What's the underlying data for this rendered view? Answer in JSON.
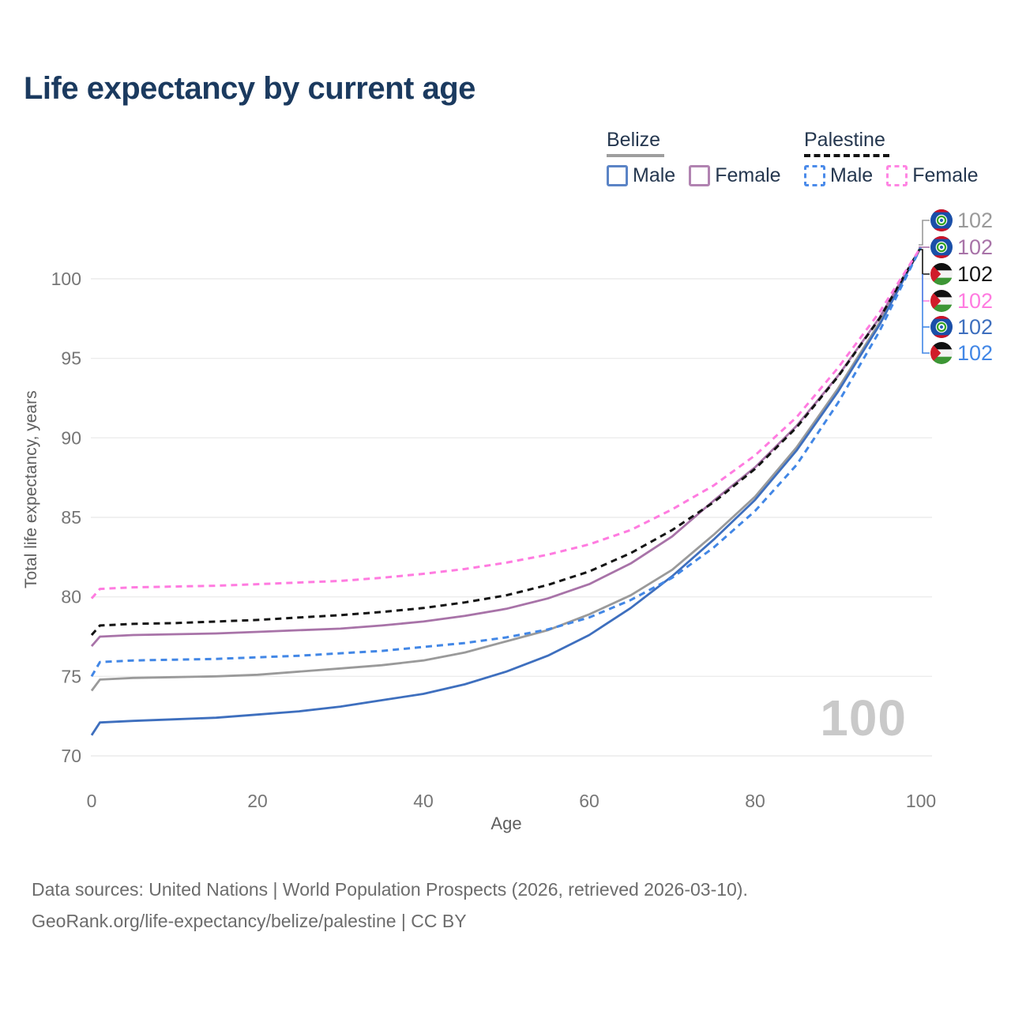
{
  "title": "Life expectancy by current age",
  "watermark": "100",
  "legend": {
    "belize": {
      "country": "Belize",
      "line_color": "#9e9e9e",
      "line_style": "solid",
      "items": [
        {
          "label": "Male",
          "color": "#5b84c6"
        },
        {
          "label": "Female",
          "color": "#b183b1"
        }
      ]
    },
    "palestine": {
      "country": "Palestine",
      "line_color": "#141414",
      "line_style": "dashed",
      "items": [
        {
          "label": "Male",
          "color": "#4b8bea"
        },
        {
          "label": "Female",
          "color": "#ff85e3"
        }
      ]
    }
  },
  "footer": {
    "line1": "Data sources: United Nations | World Population Prospects (2026, retrieved 2026-03-10).",
    "line2": "GeoRank.org/life-expectancy/belize/palestine | CC BY"
  },
  "chart_data": {
    "type": "line",
    "title": "Life expectancy by current age",
    "xlabel": "Age",
    "ylabel": "Total life expectancy, years",
    "xlim": [
      0,
      100
    ],
    "ylim": [
      69,
      103
    ],
    "xticks": [
      0,
      20,
      40,
      60,
      80,
      100
    ],
    "yticks": [
      70,
      75,
      80,
      85,
      90,
      95,
      100
    ],
    "grid": true,
    "legend_position": "top-right",
    "x": [
      0,
      1,
      5,
      10,
      15,
      20,
      25,
      30,
      35,
      40,
      45,
      50,
      55,
      60,
      65,
      70,
      75,
      80,
      85,
      90,
      95,
      100
    ],
    "series": [
      {
        "key": "belize_both",
        "name": "Belize — Both sexes",
        "flag": "belize",
        "color": "#9a9a9a",
        "dash": false,
        "end_label": "102",
        "values": [
          74.1,
          74.8,
          74.9,
          74.95,
          75.0,
          75.1,
          75.3,
          75.5,
          75.7,
          76.0,
          76.5,
          77.2,
          77.9,
          78.9,
          80.1,
          81.7,
          83.9,
          86.3,
          89.4,
          93.1,
          97.25,
          102
        ]
      },
      {
        "key": "belize_female",
        "name": "Belize — Female",
        "flag": "belize",
        "color": "#a873a8",
        "dash": false,
        "end_label": "102",
        "values": [
          76.9,
          77.5,
          77.6,
          77.65,
          77.7,
          77.8,
          77.9,
          78.0,
          78.2,
          78.45,
          78.8,
          79.25,
          79.9,
          80.8,
          82.1,
          83.8,
          86.05,
          88.15,
          90.75,
          93.9,
          97.55,
          102
        ]
      },
      {
        "key": "palestine_both",
        "name": "Palestine — Both sexes",
        "flag": "palestine",
        "color": "#141414",
        "dash": true,
        "end_label": "102",
        "values": [
          77.6,
          78.2,
          78.3,
          78.35,
          78.45,
          78.55,
          78.7,
          78.85,
          79.05,
          79.3,
          79.65,
          80.1,
          80.75,
          81.6,
          82.75,
          84.2,
          85.95,
          88.05,
          90.65,
          93.85,
          97.5,
          102
        ]
      },
      {
        "key": "palestine_female",
        "name": "Palestine — Female",
        "flag": "palestine",
        "color": "#ff7be0",
        "dash": true,
        "end_label": "102",
        "values": [
          79.9,
          80.5,
          80.6,
          80.65,
          80.7,
          80.8,
          80.9,
          81.0,
          81.2,
          81.45,
          81.75,
          82.15,
          82.65,
          83.3,
          84.2,
          85.5,
          87.0,
          88.9,
          91.3,
          94.4,
          97.9,
          102
        ]
      },
      {
        "key": "belize_male",
        "name": "Belize — Male",
        "flag": "belize",
        "color": "#3e6fbe",
        "dash": false,
        "end_label": "102",
        "values": [
          71.3,
          72.1,
          72.2,
          72.3,
          72.4,
          72.6,
          72.8,
          73.1,
          73.5,
          73.9,
          74.5,
          75.3,
          76.3,
          77.6,
          79.3,
          81.3,
          83.6,
          86.1,
          89.2,
          92.9,
          97.1,
          102
        ]
      },
      {
        "key": "palestine_male",
        "name": "Palestine — Male",
        "flag": "palestine",
        "color": "#4287e6",
        "dash": true,
        "end_label": "102",
        "values": [
          75.0,
          75.9,
          76.0,
          76.05,
          76.1,
          76.2,
          76.3,
          76.45,
          76.6,
          76.85,
          77.1,
          77.45,
          77.95,
          78.7,
          79.8,
          81.2,
          83.1,
          85.4,
          88.3,
          92.2,
          96.7,
          102
        ]
      }
    ]
  }
}
